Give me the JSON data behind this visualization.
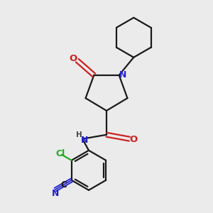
{
  "bg_color": "#ebebeb",
  "bond_color": "#1a1a1a",
  "n_color": "#2222cc",
  "o_color": "#cc2222",
  "cl_color": "#22aa22",
  "h_color": "#444444",
  "line_width": 1.6,
  "fig_w": 3.0,
  "fig_h": 3.0,
  "dpi": 100,
  "xlim": [
    0,
    10
  ],
  "ylim": [
    0,
    10
  ]
}
